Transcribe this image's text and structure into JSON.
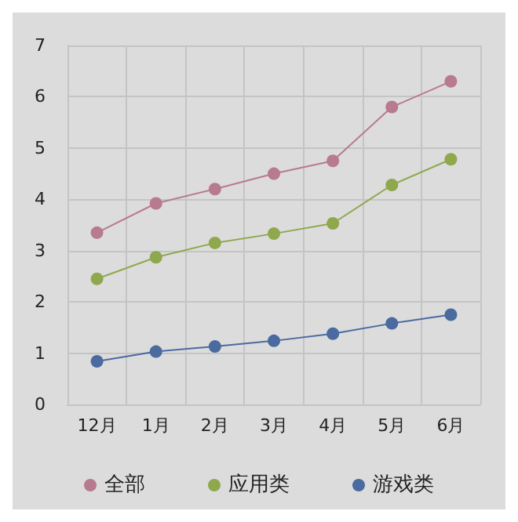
{
  "chart_data": {
    "type": "line",
    "categories": [
      "12月",
      "1月",
      "2月",
      "3月",
      "4月",
      "5月",
      "6月"
    ],
    "series": [
      {
        "name": "全部",
        "color": "#b87a8e",
        "values": [
          3.35,
          3.92,
          4.2,
          4.5,
          4.75,
          5.8,
          6.3
        ]
      },
      {
        "name": "应用类",
        "color": "#8fa84e",
        "values": [
          2.45,
          2.87,
          3.15,
          3.33,
          3.53,
          4.28,
          4.78
        ]
      },
      {
        "name": "游戏类",
        "color": "#4a6aa0",
        "values": [
          0.84,
          1.03,
          1.13,
          1.24,
          1.38,
          1.58,
          1.75
        ]
      }
    ],
    "ylim": [
      0,
      7
    ],
    "yticks": [
      0,
      1,
      2,
      3,
      4,
      5,
      6,
      7
    ],
    "grid": true,
    "legend": "bottom",
    "marker": "circle",
    "line_style": "solid"
  }
}
